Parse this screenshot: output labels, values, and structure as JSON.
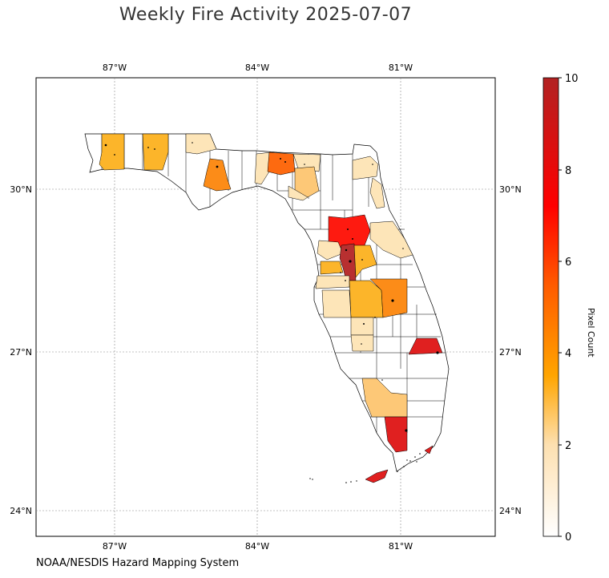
{
  "title": "Weekly Fire Activity 2025-07-07",
  "credit": "NOAA/NESDIS Hazard Mapping System",
  "map": {
    "lon_ticks": [
      "87°W",
      "84°W",
      "81°W"
    ],
    "lat_ticks": [
      "30°N",
      "27°N",
      "24°N"
    ],
    "gridlines": true
  },
  "colorbar": {
    "label": "Pixel Count",
    "min": 0,
    "max": 10,
    "ticks": [
      "0",
      "2",
      "4",
      "6",
      "8",
      "10"
    ],
    "colors": [
      "#ffffff",
      "#fde0b0",
      "#ffa500",
      "#ff5a00",
      "#ff0000",
      "#b22222"
    ]
  },
  "palette": {
    "level_1": "#fde5b8",
    "level_2": "#fdc877",
    "level_3": "#fcb52a",
    "level_4": "#fc8c18",
    "level_5": "#fd6a10",
    "level_7": "#fe1a10",
    "level_8": "#e02020",
    "level_9": "#b83030"
  }
}
